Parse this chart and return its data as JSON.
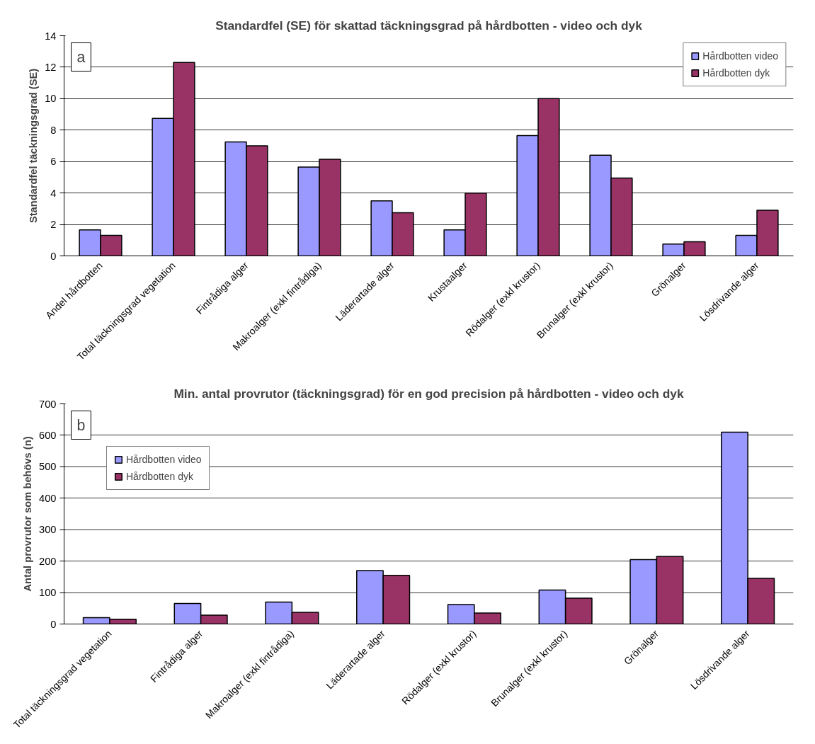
{
  "chart_data": [
    {
      "type": "bar",
      "title": "Standardfel (SE) för skattad täckningsgrad på hårdbotten - video och dyk",
      "ylabel": "Standardfel täckningsgrad (SE)",
      "annotations": [
        "a"
      ],
      "categories": [
        "Andel hårdbotten",
        "Total täckningsgrad vegetation",
        "Fintrådiga alger",
        "Makroalger (exkl fintrådiga)",
        "Läderartade alger",
        "Krustaalger",
        "Rödalger (exkl krustor)",
        "Brunalger (exkl krustor)",
        "Grönalger",
        "Lösdrivande alger"
      ],
      "series": [
        {
          "name": "Hårdbotten video",
          "color": "#9999ff",
          "values": [
            1.65,
            8.75,
            7.25,
            5.65,
            3.5,
            1.65,
            7.65,
            6.4,
            0.75,
            1.3
          ]
        },
        {
          "name": "Hårdbotten dyk",
          "color": "#993366",
          "values": [
            1.3,
            12.3,
            7.0,
            6.15,
            2.75,
            4.0,
            10.0,
            4.95,
            0.9,
            2.9
          ]
        }
      ],
      "ylim": [
        0,
        14
      ],
      "yticks": [
        0,
        2,
        4,
        6,
        8,
        10,
        12,
        14
      ],
      "grid": "y",
      "legend": "top right"
    },
    {
      "type": "bar",
      "title": "Min. antal provrutor (täckningsgrad) för en god precision på hårdbotten - video och dyk",
      "ylabel": "Antal provrutor som behövs (n)",
      "annotations": [
        "b"
      ],
      "categories": [
        "Total täckningsgrad vegetation",
        "Fintrådiga alger",
        "Makroalger (exkl fintrådiga)",
        "Läderartade alger",
        "Rödalger (exkl krustor)",
        "Brunalger (exkl krustor)",
        "Grönalger",
        "Lösdrivande alger"
      ],
      "series": [
        {
          "name": "Hårdbotten video",
          "color": "#9999ff",
          "values": [
            20,
            65,
            70,
            170,
            62,
            108,
            205,
            610
          ]
        },
        {
          "name": "Hårdbotten dyk",
          "color": "#993366",
          "values": [
            15,
            28,
            37,
            155,
            35,
            82,
            215,
            145
          ]
        }
      ],
      "ylim": [
        0,
        700
      ],
      "yticks": [
        0,
        100,
        200,
        300,
        400,
        500,
        600,
        700
      ],
      "grid": "y",
      "legend": "top left"
    }
  ]
}
